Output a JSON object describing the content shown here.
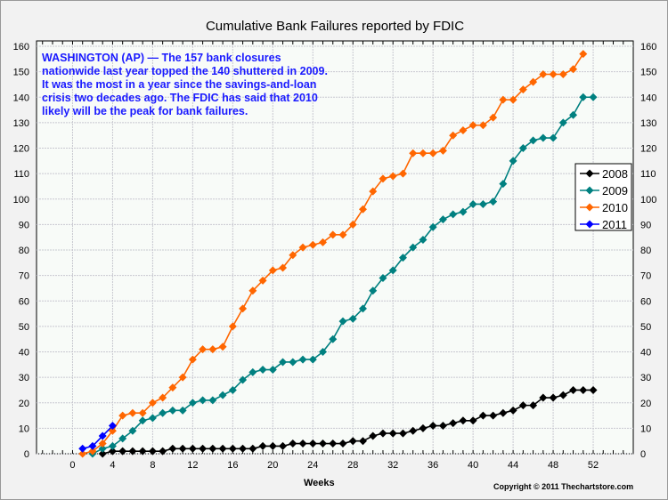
{
  "chart_data": {
    "type": "line",
    "title": "Cumulative Bank Failures reported by FDIC",
    "xlabel": "Weeks",
    "ylabel": "",
    "xlim": [
      -3.6,
      56
    ],
    "ylim": [
      0,
      160
    ],
    "xticks": [
      0,
      4,
      8,
      12,
      16,
      20,
      24,
      28,
      32,
      36,
      40,
      44,
      48,
      52
    ],
    "yticks": [
      0,
      10,
      20,
      30,
      40,
      50,
      60,
      70,
      80,
      90,
      100,
      110,
      120,
      130,
      140,
      150,
      160
    ],
    "annotation": "WASHINGTON (AP) — The 157 bank closures nationwide last year topped the 140 shuttered in 2009. It was the most in a year since the savings-and-loan crisis two decades ago.  The FDIC has said that 2010 likely will be the peak for bank failures.",
    "copyright": "Copyright © 2011 Thechartstore.com",
    "legend_position": "right",
    "series": [
      {
        "name": "2008",
        "color": "#000000",
        "start_week": 3,
        "values": [
          0,
          1,
          1,
          1,
          1,
          1,
          1,
          2,
          2,
          2,
          2,
          2,
          2,
          2,
          2,
          2,
          3,
          3,
          3,
          4,
          4,
          4,
          4,
          4,
          4,
          5,
          5,
          7,
          8,
          8,
          8,
          9,
          10,
          11,
          11,
          12,
          13,
          13,
          15,
          15,
          16,
          17,
          19,
          19,
          22,
          22,
          23,
          25,
          25,
          25
        ]
      },
      {
        "name": "2009",
        "color": "#008080",
        "start_week": 2,
        "values": [
          0,
          2,
          3,
          6,
          9,
          13,
          14,
          16,
          17,
          17,
          20,
          21,
          21,
          23,
          25,
          29,
          32,
          33,
          33,
          36,
          36,
          37,
          37,
          40,
          45,
          52,
          53,
          57,
          64,
          69,
          72,
          77,
          81,
          84,
          89,
          92,
          94,
          95,
          98,
          98,
          99,
          106,
          115,
          120,
          123,
          124,
          124,
          130,
          133,
          140,
          140
        ]
      },
      {
        "name": "2010",
        "color": "#ff6600",
        "start_week": 1,
        "values": [
          0,
          1,
          4,
          9,
          15,
          16,
          16,
          20,
          22,
          26,
          30,
          37,
          41,
          41,
          42,
          50,
          57,
          64,
          68,
          72,
          73,
          78,
          81,
          82,
          83,
          86,
          86,
          90,
          96,
          103,
          108,
          109,
          110,
          118,
          118,
          118,
          119,
          125,
          127,
          129,
          129,
          132,
          139,
          139,
          143,
          146,
          149,
          149,
          149,
          151,
          157
        ]
      },
      {
        "name": "2011",
        "color": "#0000ff",
        "start_week": 1,
        "values": [
          2,
          3,
          7,
          11
        ]
      }
    ]
  }
}
